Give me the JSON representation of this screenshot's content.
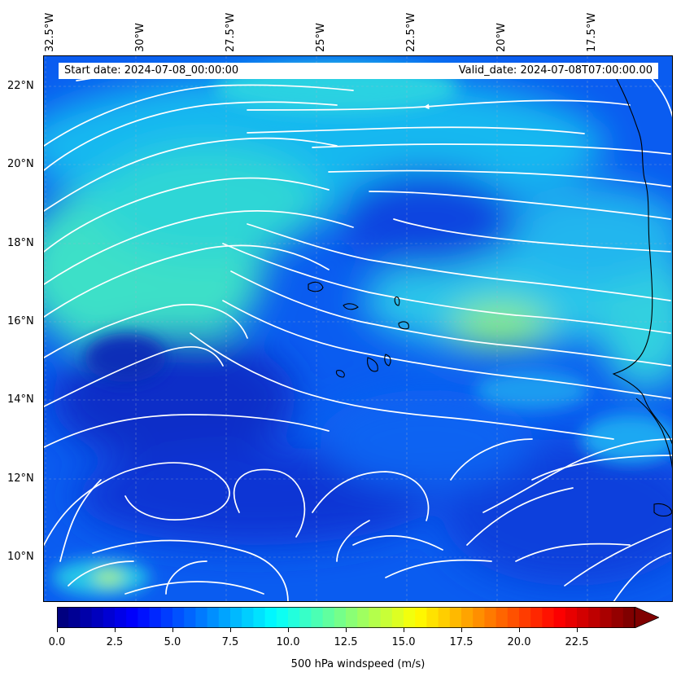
{
  "header": {
    "start_date": "Start date: 2024-07-08_00:00:00",
    "valid_date": "Valid_date: 2024-07-08T07:00:00.00"
  },
  "longitude_labels": [
    "32.5°W",
    "30°W",
    "27.5°W",
    "25°W",
    "22.5°W",
    "20°W",
    "17.5°W"
  ],
  "latitude_labels": [
    "22°N",
    "20°N",
    "18°N",
    "16°N",
    "14°N",
    "12°N",
    "10°N"
  ],
  "colorbar": {
    "title": "500 hPa windspeed (m/s)",
    "ticks": [
      "0.0",
      "2.5",
      "5.0",
      "7.5",
      "10.0",
      "12.5",
      "15.0",
      "17.5",
      "20.0",
      "22.5"
    ],
    "colormap": "jet",
    "min": 0,
    "max": 25,
    "extend": "max"
  },
  "colors": {
    "streamline": "#ffffff",
    "coastline": "#000000",
    "gridline": "#aab4c8"
  }
}
